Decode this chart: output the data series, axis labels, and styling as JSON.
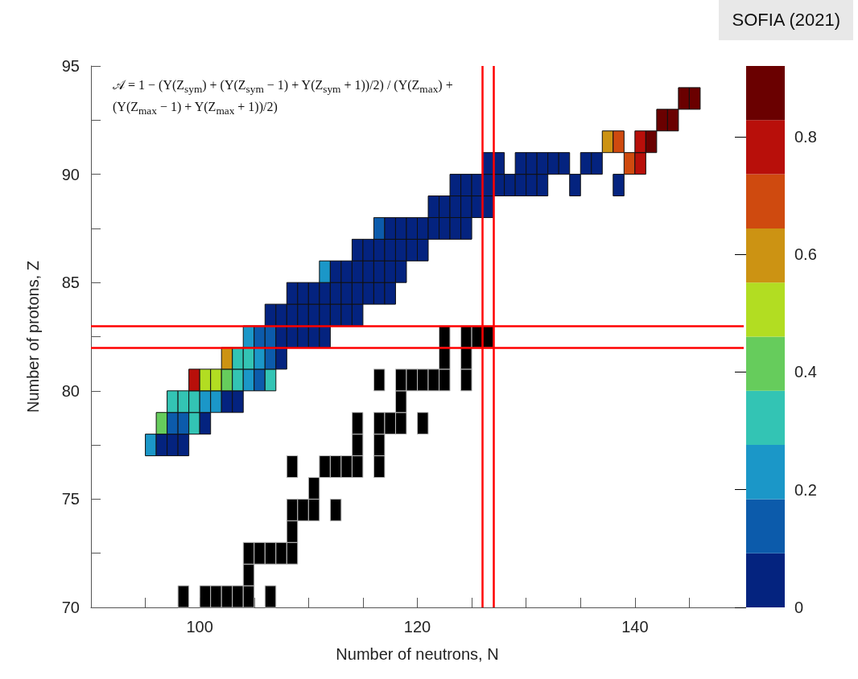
{
  "chart_data": {
    "type": "scatter",
    "marker": "square",
    "xlabel": "Number of neutrons, N",
    "ylabel": "Number of protons, Z",
    "xlim": [
      90,
      150
    ],
    "xticks": [
      {
        "value": 95,
        "label": null
      },
      100,
      {
        "value": 105,
        "label": null
      },
      {
        "value": 110,
        "label": null
      },
      {
        "value": 115,
        "label": null
      },
      120,
      {
        "value": 125,
        "label": null
      },
      {
        "value": 130,
        "label": null
      },
      {
        "value": 135,
        "label": null
      },
      140,
      {
        "value": 145,
        "label": null
      }
    ],
    "ylim": [
      70,
      95
    ],
    "yticks": [
      70,
      {
        "value": 72.5,
        "label": null
      },
      75,
      {
        "value": 77.5,
        "label": null
      },
      80,
      {
        "value": 82.5,
        "label": null
      },
      85,
      {
        "value": 87.5,
        "label": null
      },
      90,
      {
        "value": 92.5,
        "label": null
      },
      95
    ],
    "clim": [
      0,
      0.92
    ],
    "cticks": [
      0,
      0.2,
      0.4,
      0.6,
      0.8
    ],
    "series": [
      {
        "x": [
          95.5,
          96.5,
          97.5,
          98.5,
          96.5,
          97.5,
          98.5,
          99.5,
          100.5,
          97.5,
          98.5,
          99.5,
          100.5,
          101.5,
          102.5,
          103.5,
          99.5,
          100.5,
          101.5,
          102.5,
          103.5,
          104.5,
          105.5,
          106.5,
          102.5,
          103.5,
          104.5,
          105.5,
          106.5,
          107.5,
          104.5,
          105.5,
          106.5,
          107.5,
          108.5,
          109.5,
          110.5,
          111.5,
          106.5,
          107.5,
          108.5,
          109.5,
          110.5,
          111.5,
          112.5,
          113.5,
          114.5,
          108.5,
          109.5,
          110.5,
          111.5,
          112.5,
          113.5,
          114.5,
          115.5,
          116.5,
          117.5,
          111.5,
          112.5,
          113.5,
          114.5,
          115.5,
          116.5,
          117.5,
          118.5,
          114.5,
          115.5,
          116.5,
          117.5,
          118.5,
          119.5,
          120.5,
          116.5,
          117.5,
          118.5,
          119.5,
          120.5,
          121.5,
          122.5,
          123.5,
          124.5,
          121.5,
          122.5,
          123.5,
          124.5,
          125.5,
          126.5,
          123.5,
          124.5,
          125.5,
          126.5,
          127.5,
          128.5,
          129.5,
          130.5,
          131.5,
          134.5,
          138.5,
          126.5,
          127.5,
          129.5,
          130.5,
          131.5,
          132.5,
          133.5,
          135.5,
          136.5,
          139.5,
          140.5,
          137.5,
          138.5,
          140.5,
          141.5,
          142.5,
          143.5,
          144.5,
          145.5
        ],
        "values": [
          77.5,
          77.5,
          77.5,
          77.5,
          78.5,
          78.5,
          78.5,
          78.5,
          78.5,
          79.5,
          79.5,
          79.5,
          79.5,
          79.5,
          79.5,
          79.5,
          80.5,
          80.5,
          80.5,
          80.5,
          80.5,
          80.5,
          80.5,
          80.5,
          81.5,
          81.5,
          81.5,
          81.5,
          81.5,
          81.5,
          82.5,
          82.5,
          82.5,
          82.5,
          82.5,
          82.5,
          82.5,
          82.5,
          83.5,
          83.5,
          83.5,
          83.5,
          83.5,
          83.5,
          83.5,
          83.5,
          83.5,
          84.5,
          84.5,
          84.5,
          84.5,
          84.5,
          84.5,
          84.5,
          84.5,
          84.5,
          84.5,
          85.5,
          85.5,
          85.5,
          85.5,
          85.5,
          85.5,
          85.5,
          85.5,
          86.5,
          86.5,
          86.5,
          86.5,
          86.5,
          86.5,
          86.5,
          87.5,
          87.5,
          87.5,
          87.5,
          87.5,
          87.5,
          87.5,
          87.5,
          87.5,
          88.5,
          88.5,
          88.5,
          88.5,
          88.5,
          88.5,
          89.5,
          89.5,
          89.5,
          89.5,
          89.5,
          89.5,
          89.5,
          89.5,
          89.5,
          89.5,
          89.5,
          90.5,
          90.5,
          90.5,
          90.5,
          90.5,
          90.5,
          90.5,
          90.5,
          90.5,
          90.5,
          90.5,
          91.5,
          91.5,
          91.5,
          91.5,
          92.5,
          92.5,
          93.5,
          93.5
        ],
        "colors": [
          "#1b97c8",
          "#04237f",
          "#04237f",
          "#04237f",
          "#66cc5c",
          "#0c5bab",
          "#0c5bab",
          "#33c4b4",
          "#04237f",
          "#33c4b4",
          "#33c4b4",
          "#33c4b4",
          "#1b97c8",
          "#1b97c8",
          "#04237f",
          "#04237f",
          "#b80f0a",
          "#b2dd22",
          "#b2dd22",
          "#66cc5c",
          "#33c4b4",
          "#1b97c8",
          "#0c5bab",
          "#33c4b4",
          "#cc9313",
          "#33c4b4",
          "#33c4b4",
          "#1b97c8",
          "#0c5bab",
          "#04237f",
          "#1b97c8",
          "#0c5bab",
          "#0c5bab",
          "#04237f",
          "#04237f",
          "#04237f",
          "#04237f",
          "#04237f",
          "#04237f",
          "#04237f",
          "#04237f",
          "#04237f",
          "#04237f",
          "#04237f",
          "#04237f",
          "#04237f",
          "#04237f",
          "#04237f",
          "#04237f",
          "#04237f",
          "#04237f",
          "#04237f",
          "#04237f",
          "#04237f",
          "#04237f",
          "#04237f",
          "#04237f",
          "#1b97c8",
          "#04237f",
          "#04237f",
          "#04237f",
          "#04237f",
          "#04237f",
          "#04237f",
          "#04237f",
          "#04237f",
          "#04237f",
          "#04237f",
          "#04237f",
          "#04237f",
          "#04237f",
          "#04237f",
          "#0c5bab",
          "#04237f",
          "#04237f",
          "#04237f",
          "#04237f",
          "#04237f",
          "#04237f",
          "#04237f",
          "#04237f",
          "#04237f",
          "#04237f",
          "#04237f",
          "#04237f",
          "#04237f",
          "#04237f",
          "#04237f",
          "#04237f",
          "#04237f",
          "#04237f",
          "#04237f",
          "#04237f",
          "#04237f",
          "#04237f",
          "#04237f",
          "#04237f",
          "#04237f",
          "#04237f",
          "#04237f",
          "#04237f",
          "#04237f",
          "#04237f",
          "#04237f",
          "#04237f",
          "#04237f",
          "#04237f",
          "#cf4a0f",
          "#b80f0a",
          "#cc9313",
          "#cf4a0f",
          "#b80f0a",
          "#6a0000",
          "#6a0000",
          "#6a0000",
          "#6a0000",
          "#6a0000"
        ]
      },
      {
        "color": "#000000",
        "x": [
          98.5,
          100.5,
          101.5,
          102.5,
          103.5,
          104.5,
          106.5,
          104.5,
          104.5,
          105.5,
          106.5,
          107.5,
          108.5,
          108.5,
          108.5,
          109.5,
          110.5,
          112.5,
          110.5,
          108.5,
          111.5,
          112.5,
          113.5,
          114.5,
          116.5,
          114.5,
          116.5,
          114.5,
          116.5,
          117.5,
          118.5,
          120.5,
          118.5,
          116.5,
          118.5,
          119.5,
          120.5,
          121.5,
          122.5,
          124.5,
          122.5,
          124.5,
          122.5,
          124.5,
          125.5,
          126.5
        ],
        "values": [
          70.5,
          70.5,
          70.5,
          70.5,
          70.5,
          70.5,
          70.5,
          71.5,
          72.5,
          72.5,
          72.5,
          72.5,
          72.5,
          73.5,
          74.5,
          74.5,
          74.5,
          74.5,
          75.5,
          76.5,
          76.5,
          76.5,
          76.5,
          76.5,
          76.5,
          77.5,
          77.5,
          78.5,
          78.5,
          78.5,
          78.5,
          78.5,
          79.5,
          80.5,
          80.5,
          80.5,
          80.5,
          80.5,
          80.5,
          80.5,
          81.5,
          81.5,
          82.5,
          82.5,
          82.5,
          82.5
        ]
      }
    ],
    "ref_lines": [
      {
        "axis": "x",
        "value": 126,
        "color": "#ff0000"
      },
      {
        "axis": "x",
        "value": 127,
        "color": "#ff0000"
      },
      {
        "axis": "y",
        "value": 82,
        "color": "#ff0000"
      },
      {
        "axis": "y",
        "value": 83,
        "color": "#ff0000"
      }
    ],
    "annotations": [
      "𝒜 = 1 − (Y(Z$_{sym}$) + (Y(Z$_{sym}$ − 1) + Y(Z$_{sym}$ + 1))/2) / (Y(Z$_{max}$) + (Y(Z$_{max}$ − 1) + Y(Z$_{max}$ + 1))/2)",
      "SOFIA (2021)"
    ]
  }
}
